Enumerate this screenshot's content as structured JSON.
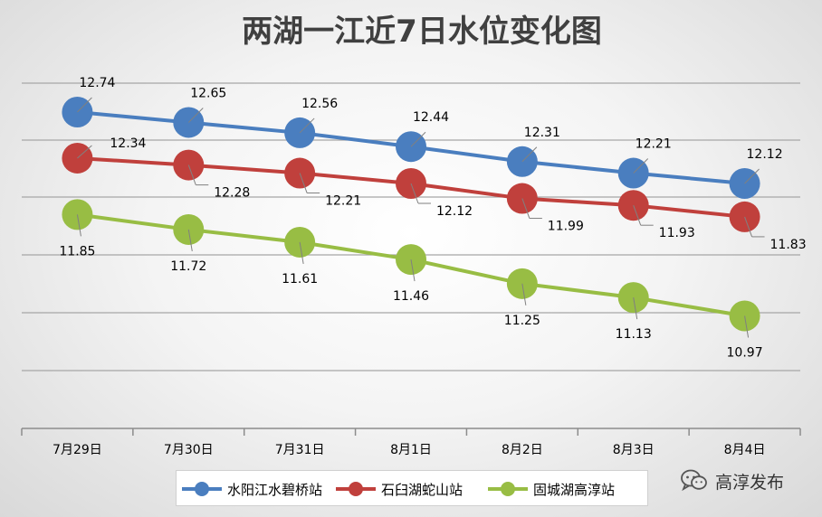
{
  "chart_data": {
    "type": "line",
    "title": "两湖一江近7日水位变化图",
    "categories": [
      "7月29日",
      "7月30日",
      "7月31日",
      "8月1日",
      "8月2日",
      "8月3日",
      "8月4日"
    ],
    "series": [
      {
        "name": "水阳江水碧桥站",
        "color": "#4a7ebf",
        "values": [
          12.74,
          12.65,
          12.56,
          12.44,
          12.31,
          12.21,
          12.12
        ]
      },
      {
        "name": "石臼湖蛇山站",
        "color": "#c0403c",
        "values": [
          12.34,
          12.28,
          12.21,
          12.12,
          11.99,
          11.93,
          11.83
        ]
      },
      {
        "name": "固城湖高淳站",
        "color": "#98bd44",
        "values": [
          11.85,
          11.72,
          11.61,
          11.46,
          11.25,
          11.13,
          10.97
        ]
      }
    ],
    "grid": true,
    "legend": "bottom"
  },
  "watermark": {
    "text": "高淳发布",
    "icon": "wechat-icon"
  }
}
